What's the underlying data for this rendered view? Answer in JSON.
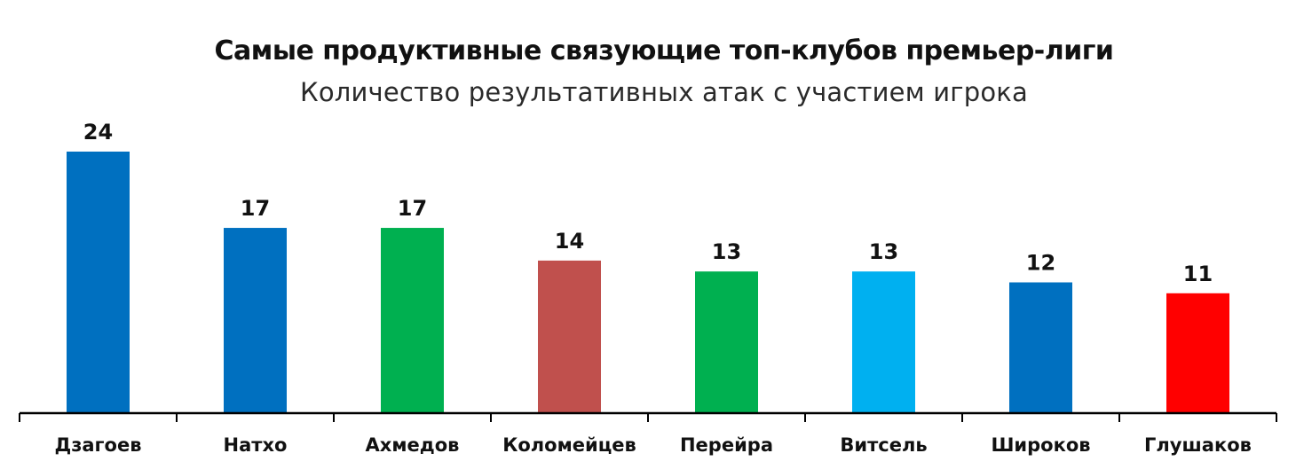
{
  "chart_data": {
    "type": "bar",
    "title": "Самые продуктивные связующие топ-клубов премьер-лиги",
    "subtitle": "Количество результативных атак с участием игрока",
    "categories": [
      "Дзагоев",
      "Натхо",
      "Ахмедов",
      "Коломейцев",
      "Перейра",
      "Витсель",
      "Широков",
      "Глушаков"
    ],
    "values": [
      24,
      17,
      17,
      14,
      13,
      13,
      12,
      11
    ],
    "colors": [
      "#0070C0",
      "#0070C0",
      "#00B050",
      "#C0504D",
      "#00B050",
      "#00B0F0",
      "#0070C0",
      "#FF0000"
    ],
    "data_labels": true,
    "xlabel": "",
    "ylabel": "",
    "ylim": [
      0,
      24
    ],
    "grid": false,
    "legend": "none"
  }
}
